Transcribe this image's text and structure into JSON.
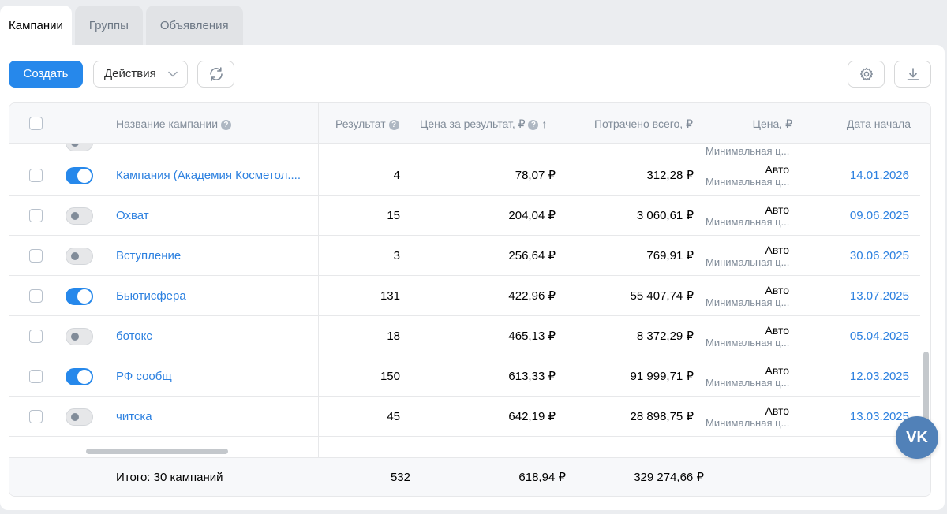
{
  "tabs": [
    {
      "label": "Кампании",
      "active": true
    },
    {
      "label": "Группы",
      "active": false
    },
    {
      "label": "Объявления",
      "active": false
    }
  ],
  "toolbar": {
    "create_label": "Создать",
    "actions_label": "Действия"
  },
  "table": {
    "headers": {
      "name": "Название кампании",
      "result": "Результат",
      "cost_per_result": "Цена за результат, ₽",
      "spent": "Потрачено всего, ₽",
      "price": "Цена, ₽",
      "start_date": "Дата начала"
    },
    "partial_row_sub": "Минимальная ц...",
    "rows": [
      {
        "enabled": true,
        "name": "Кампания (Академия Косметол....",
        "result": "4",
        "cost": "78,07 ₽",
        "spent": "312,28 ₽",
        "price": "Авто",
        "price_sub": "Минимальная ц...",
        "date": "14.01.2026"
      },
      {
        "enabled": false,
        "name": "Охват",
        "result": "15",
        "cost": "204,04 ₽",
        "spent": "3 060,61 ₽",
        "price": "Авто",
        "price_sub": "Минимальная ц...",
        "date": "09.06.2025"
      },
      {
        "enabled": false,
        "name": "Вступление",
        "result": "3",
        "cost": "256,64 ₽",
        "spent": "769,91 ₽",
        "price": "Авто",
        "price_sub": "Минимальная ц...",
        "date": "30.06.2025"
      },
      {
        "enabled": true,
        "name": "Бьютисфера",
        "result": "131",
        "cost": "422,96 ₽",
        "spent": "55 407,74 ₽",
        "price": "Авто",
        "price_sub": "Минимальная ц...",
        "date": "13.07.2025"
      },
      {
        "enabled": false,
        "name": "ботокс",
        "result": "18",
        "cost": "465,13 ₽",
        "spent": "8 372,29 ₽",
        "price": "Авто",
        "price_sub": "Минимальная ц...",
        "date": "05.04.2025"
      },
      {
        "enabled": true,
        "name": "РФ сообщ",
        "result": "150",
        "cost": "613,33 ₽",
        "spent": "91 999,71 ₽",
        "price": "Авто",
        "price_sub": "Минимальная ц...",
        "date": "12.03.2025"
      },
      {
        "enabled": false,
        "name": "читска",
        "result": "45",
        "cost": "642,19 ₽",
        "spent": "28 898,75 ₽",
        "price": "Авто",
        "price_sub": "Минимальная ц...",
        "date": "13.03.2025"
      }
    ],
    "footer": {
      "total_label": "Итого: 30 кампаний",
      "result": "532",
      "cost": "618,94 ₽",
      "spent": "329 274,66 ₽"
    }
  },
  "icons": {
    "refresh": "refresh-icon",
    "settings": "gear-icon",
    "download": "download-icon",
    "vk": "vk-logo"
  },
  "vk_label": "VK",
  "colors": {
    "accent": "#2688eb",
    "link": "#2d81e0",
    "secondary_text": "#818c99",
    "vk_brand": "#5181b8"
  }
}
